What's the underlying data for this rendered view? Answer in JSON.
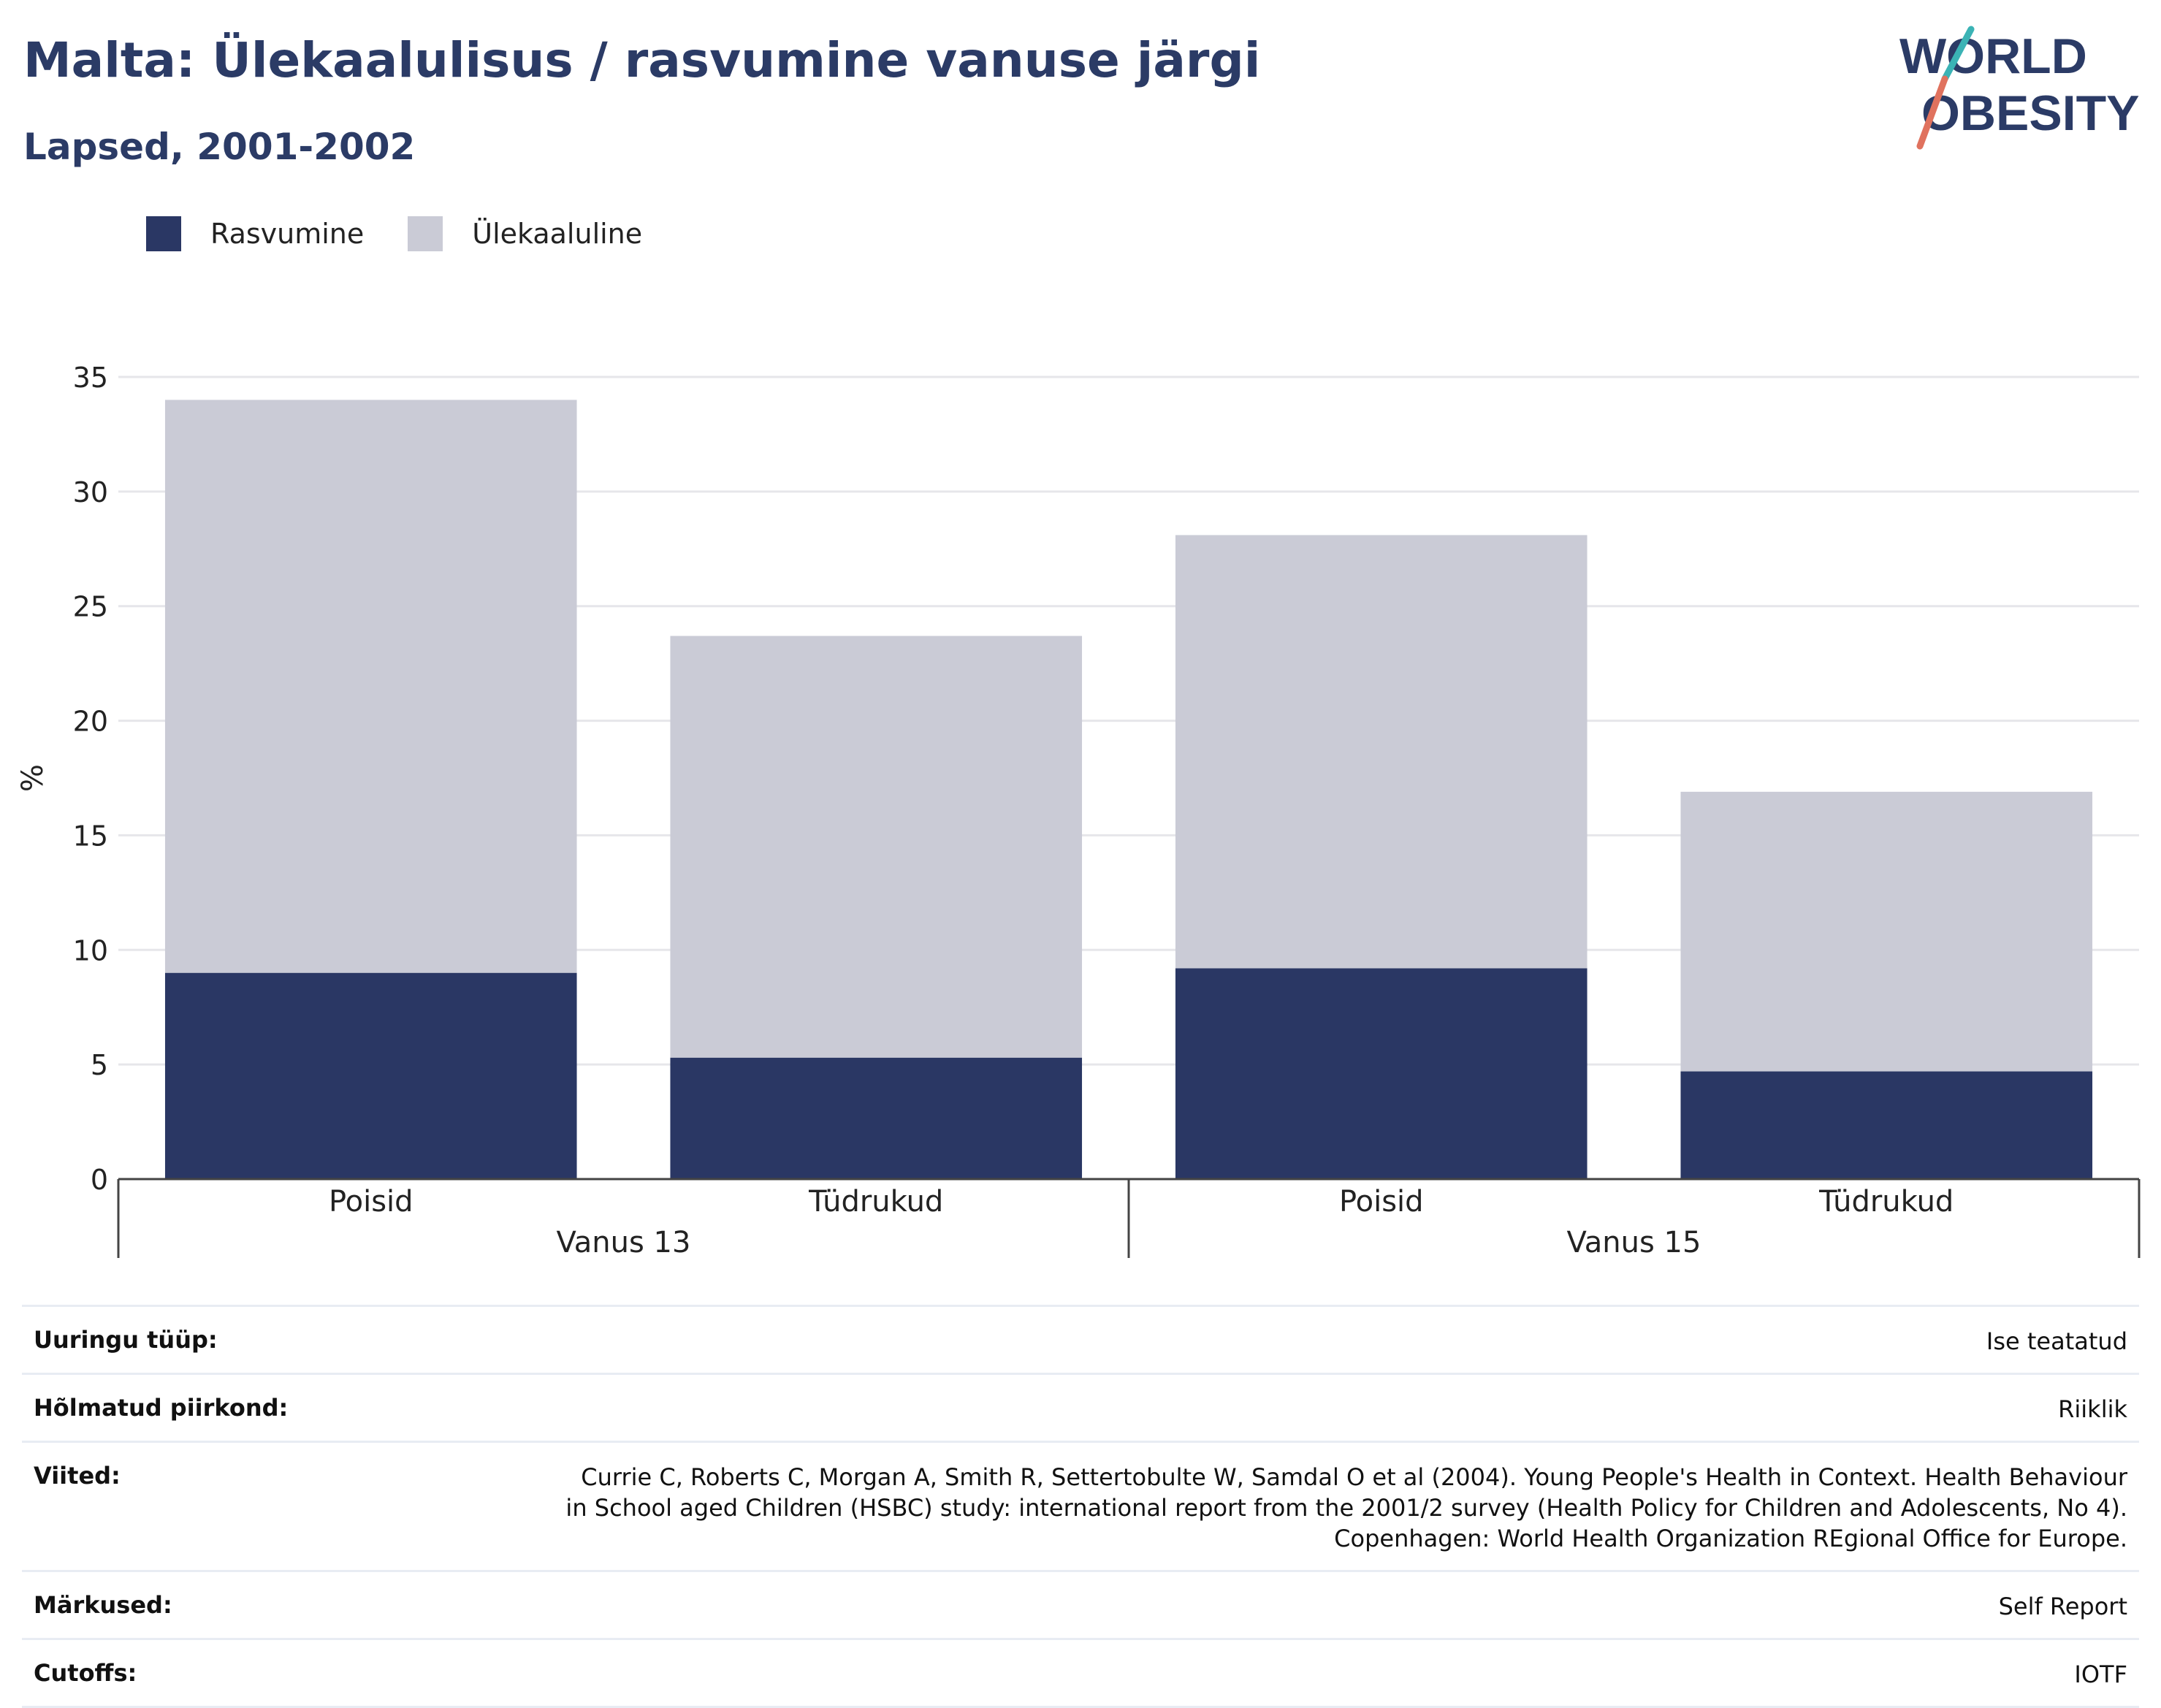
{
  "title": "Malta: Ülekaalulisus / rasvumine vanuse järgi",
  "subtitle": "Lapsed, 2001-2002",
  "logo": {
    "line1": "WORLD",
    "line2": "OBESITY"
  },
  "colors": {
    "rasvumine": "#2a3764",
    "ulekaaluline": "#cacbd6",
    "title": "#2b3b66"
  },
  "chart_data": {
    "type": "bar",
    "stacked": true,
    "ylabel": "%",
    "ylim": [
      0,
      35
    ],
    "yticks": [
      0,
      5,
      10,
      15,
      20,
      25,
      30,
      35
    ],
    "legend_position": "top-left",
    "grid": true,
    "groups": [
      {
        "label": "Vanus 13",
        "categories": [
          "Poisid",
          "Tüdrukud"
        ]
      },
      {
        "label": "Vanus 15",
        "categories": [
          "Poisid",
          "Tüdrukud"
        ]
      }
    ],
    "series": [
      {
        "name": "Rasvumine",
        "values": [
          9.0,
          5.3,
          9.2,
          4.7
        ]
      },
      {
        "name": "Ülekaaluline",
        "values": [
          25.0,
          18.4,
          18.9,
          12.2
        ]
      }
    ]
  },
  "meta": [
    {
      "key": "Uuringu tüüp:",
      "value": "Ise teatatud"
    },
    {
      "key": "Hõlmatud piirkond:",
      "value": "Riiklik"
    },
    {
      "key": "Viited:",
      "value": "Currie C, Roberts C, Morgan A, Smith R, Settertobulte W, Samdal O et al (2004). Young People's Health in Context. Health Behaviour in School aged Children (HSBC) study: international report from the 2001/2 survey (Health Policy for Children and Adolescents, No 4). Copenhagen: World Health Organization REgional Office for Europe."
    },
    {
      "key": "Märkused:",
      "value": "Self Report"
    },
    {
      "key": "Cutoffs:",
      "value": "IOTF"
    }
  ]
}
